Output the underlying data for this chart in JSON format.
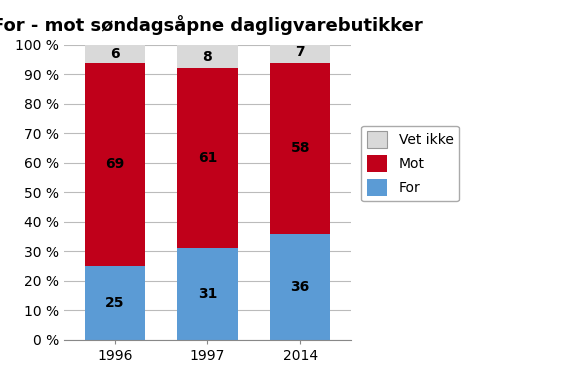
{
  "title": "For - mot søndagsåpne dagligvarebutikker",
  "categories": [
    "1996",
    "1997",
    "2014"
  ],
  "for_values": [
    25,
    31,
    36
  ],
  "mot_values": [
    69,
    61,
    58
  ],
  "vet_ikke_values": [
    6,
    8,
    7
  ],
  "for_color": "#5B9BD5",
  "mot_color": "#C0001A",
  "vet_ikke_color": "#D9D9D9",
  "for_label": "For",
  "mot_label": "Mot",
  "vet_ikke_label": "Vet ikke",
  "ylim": [
    0,
    100
  ],
  "ytick_labels": [
    "0 %",
    "10 %",
    "20 %",
    "30 %",
    "40 %",
    "50 %",
    "60 %",
    "70 %",
    "80 %",
    "90 %",
    "100 %"
  ],
  "ytick_values": [
    0,
    10,
    20,
    30,
    40,
    50,
    60,
    70,
    80,
    90,
    100
  ],
  "bar_width": 0.65,
  "title_fontsize": 13,
  "label_fontsize": 10,
  "tick_fontsize": 10,
  "legend_fontsize": 10,
  "background_color": "#FFFFFF"
}
